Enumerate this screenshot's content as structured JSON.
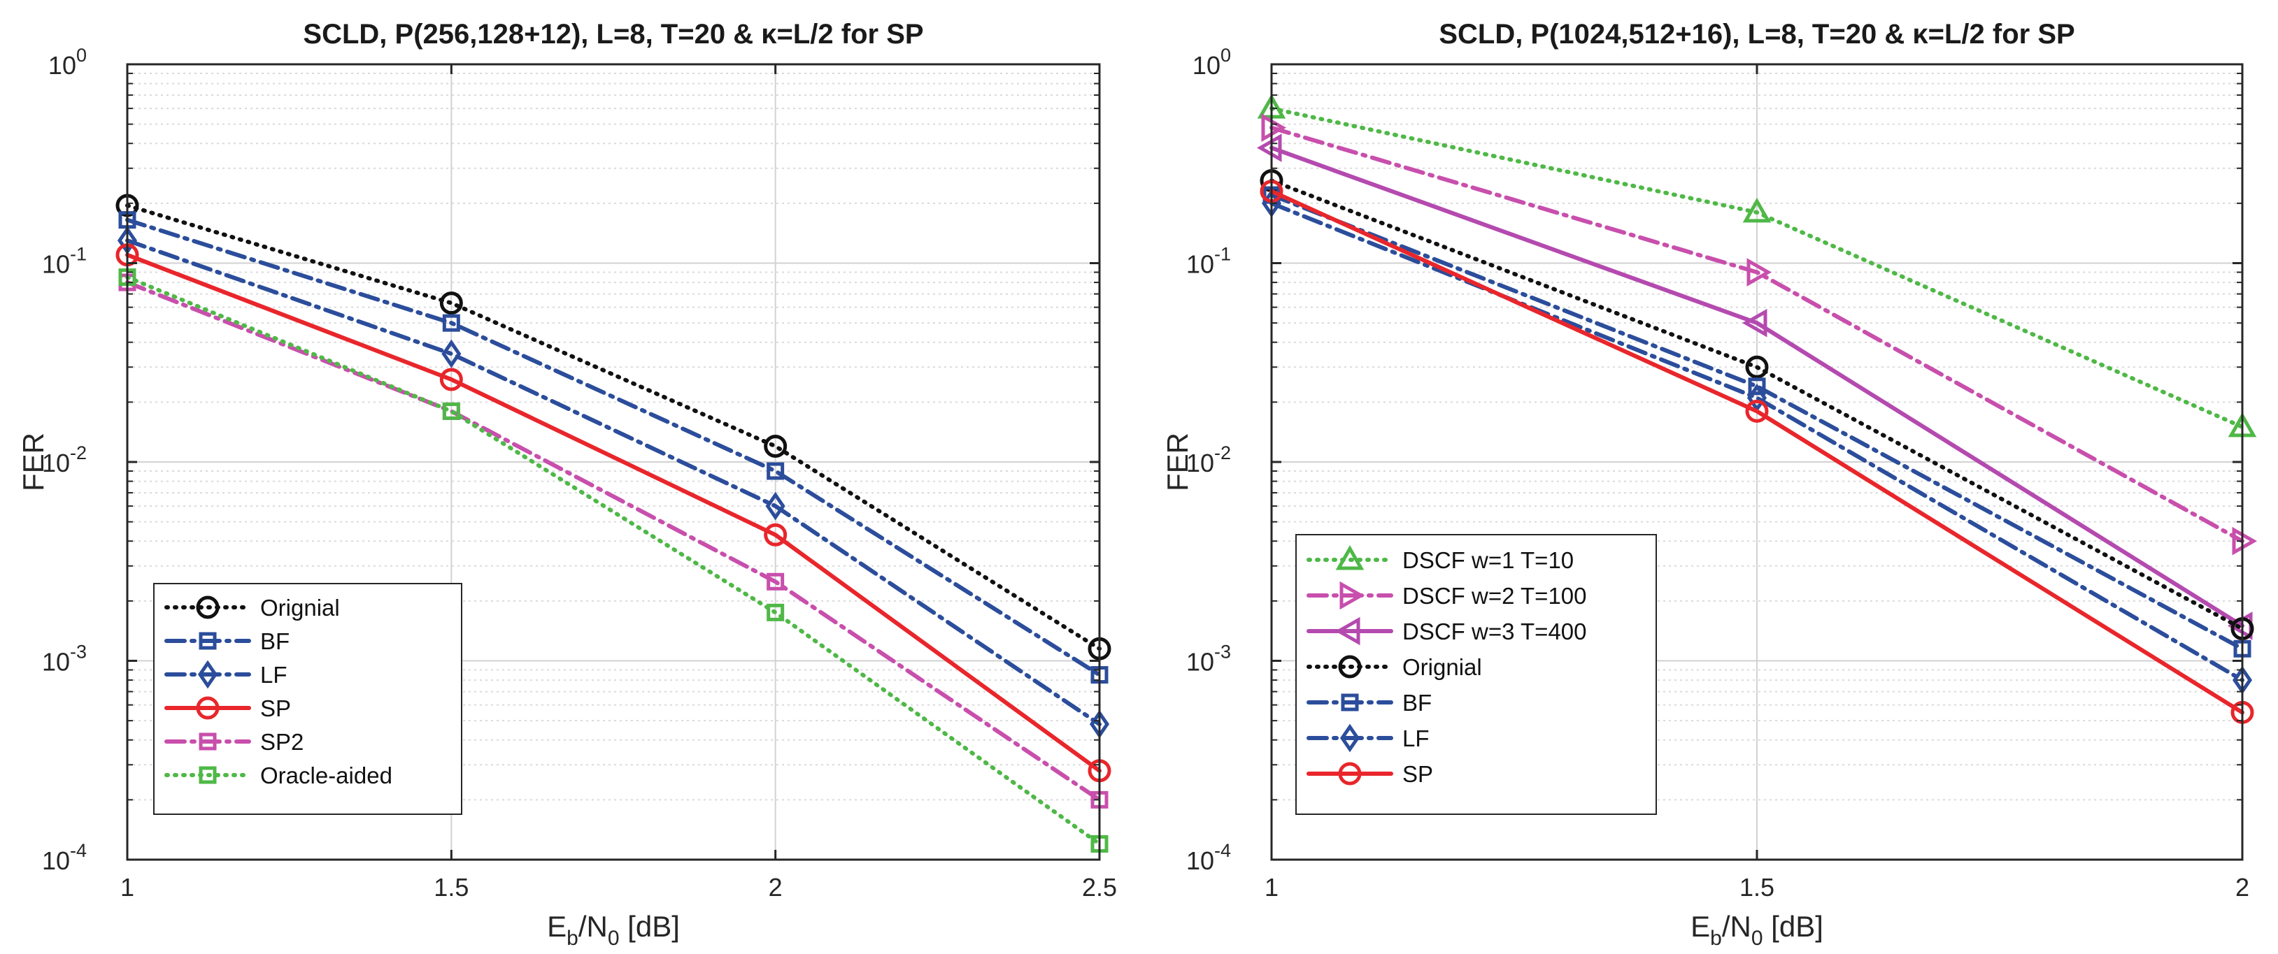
{
  "chart_data": [
    {
      "type": "line",
      "title": "SCLD, P(256,128+12), L=8, T=20 & κ=L/2  for SP",
      "xlabel": {
        "main": "E",
        "sub1": "b",
        "mid": "/N",
        "sub2": "0",
        "tail": " [dB]"
      },
      "ylabel": "FER",
      "xscale": "linear",
      "yscale": "log",
      "xlim": [
        1,
        2.5
      ],
      "ylim": [
        0.0001,
        1
      ],
      "xticks": [
        "1",
        "1.5",
        "2",
        "2.5"
      ],
      "yticks": [
        {
          "base": "10",
          "exp": "-4"
        },
        {
          "base": "10",
          "exp": "-3"
        },
        {
          "base": "10",
          "exp": "-2"
        },
        {
          "base": "10",
          "exp": "-1"
        },
        {
          "base": "10",
          "exp": "0"
        }
      ],
      "grid": true,
      "legend_position": "bottom-left",
      "x": [
        1,
        1.5,
        2,
        2.5
      ],
      "series": [
        {
          "name": "Orignial",
          "color": "#111111",
          "style": "dotted",
          "marker": "circle",
          "values": [
            0.195,
            0.063,
            0.012,
            0.00115
          ]
        },
        {
          "name": "BF",
          "color": "#2b4d9b",
          "style": "dashdot",
          "marker": "square",
          "values": [
            0.165,
            0.05,
            0.009,
            0.00085
          ]
        },
        {
          "name": "LF",
          "color": "#2b4d9b",
          "style": "dashdot",
          "marker": "diamond",
          "values": [
            0.13,
            0.035,
            0.006,
            0.00048
          ]
        },
        {
          "name": "SP",
          "color": "#e8262b",
          "style": "solid",
          "marker": "circle",
          "values": [
            0.11,
            0.026,
            0.0043,
            0.00028
          ]
        },
        {
          "name": "SP2",
          "color": "#c84fac",
          "style": "dashdot",
          "marker": "square",
          "values": [
            0.08,
            0.018,
            0.0025,
            0.0002
          ]
        },
        {
          "name": "Oracle-aided",
          "color": "#4fb847",
          "style": "dotted",
          "marker": "square",
          "values": [
            0.085,
            0.018,
            0.00175,
            0.00012
          ]
        }
      ]
    },
    {
      "type": "line",
      "title": "SCLD, P(1024,512+16), L=8, T=20 & κ=L/2  for SP",
      "xlabel": {
        "main": "E",
        "sub1": "b",
        "mid": "/N",
        "sub2": "0",
        "tail": " [dB]"
      },
      "ylabel": "FER",
      "xscale": "linear",
      "yscale": "log",
      "xlim": [
        1,
        2
      ],
      "ylim": [
        0.0001,
        1
      ],
      "xticks": [
        "1",
        "1.5",
        "2"
      ],
      "yticks": [
        {
          "base": "10",
          "exp": "-4"
        },
        {
          "base": "10",
          "exp": "-3"
        },
        {
          "base": "10",
          "exp": "-2"
        },
        {
          "base": "10",
          "exp": "-1"
        },
        {
          "base": "10",
          "exp": "0"
        }
      ],
      "grid": true,
      "legend_position": "bottom-left",
      "x": [
        1,
        1.5,
        2
      ],
      "series": [
        {
          "name": "DSCF w=1 T=10",
          "color": "#4fb847",
          "style": "dotted",
          "marker": "triangle-up",
          "values": [
            0.6,
            0.18,
            0.015
          ]
        },
        {
          "name": "DSCF w=2 T=100",
          "color": "#c84fac",
          "style": "dashdot",
          "marker": "triangle-right",
          "values": [
            0.48,
            0.09,
            0.004
          ]
        },
        {
          "name": "DSCF w=3 T=400",
          "color": "#b44aaf",
          "style": "solid",
          "marker": "triangle-left",
          "values": [
            0.38,
            0.05,
            0.0015
          ]
        },
        {
          "name": "Orignial",
          "color": "#111111",
          "style": "dotted",
          "marker": "circle",
          "values": [
            0.26,
            0.03,
            0.00145
          ]
        },
        {
          "name": "BF",
          "color": "#2b4d9b",
          "style": "dashdot",
          "marker": "square",
          "values": [
            0.22,
            0.024,
            0.00115
          ]
        },
        {
          "name": "LF",
          "color": "#2b4d9b",
          "style": "dashdot",
          "marker": "diamond",
          "values": [
            0.2,
            0.021,
            0.0008
          ]
        },
        {
          "name": "SP",
          "color": "#e8262b",
          "style": "solid",
          "marker": "circle",
          "values": [
            0.23,
            0.018,
            0.00055
          ]
        }
      ]
    }
  ]
}
